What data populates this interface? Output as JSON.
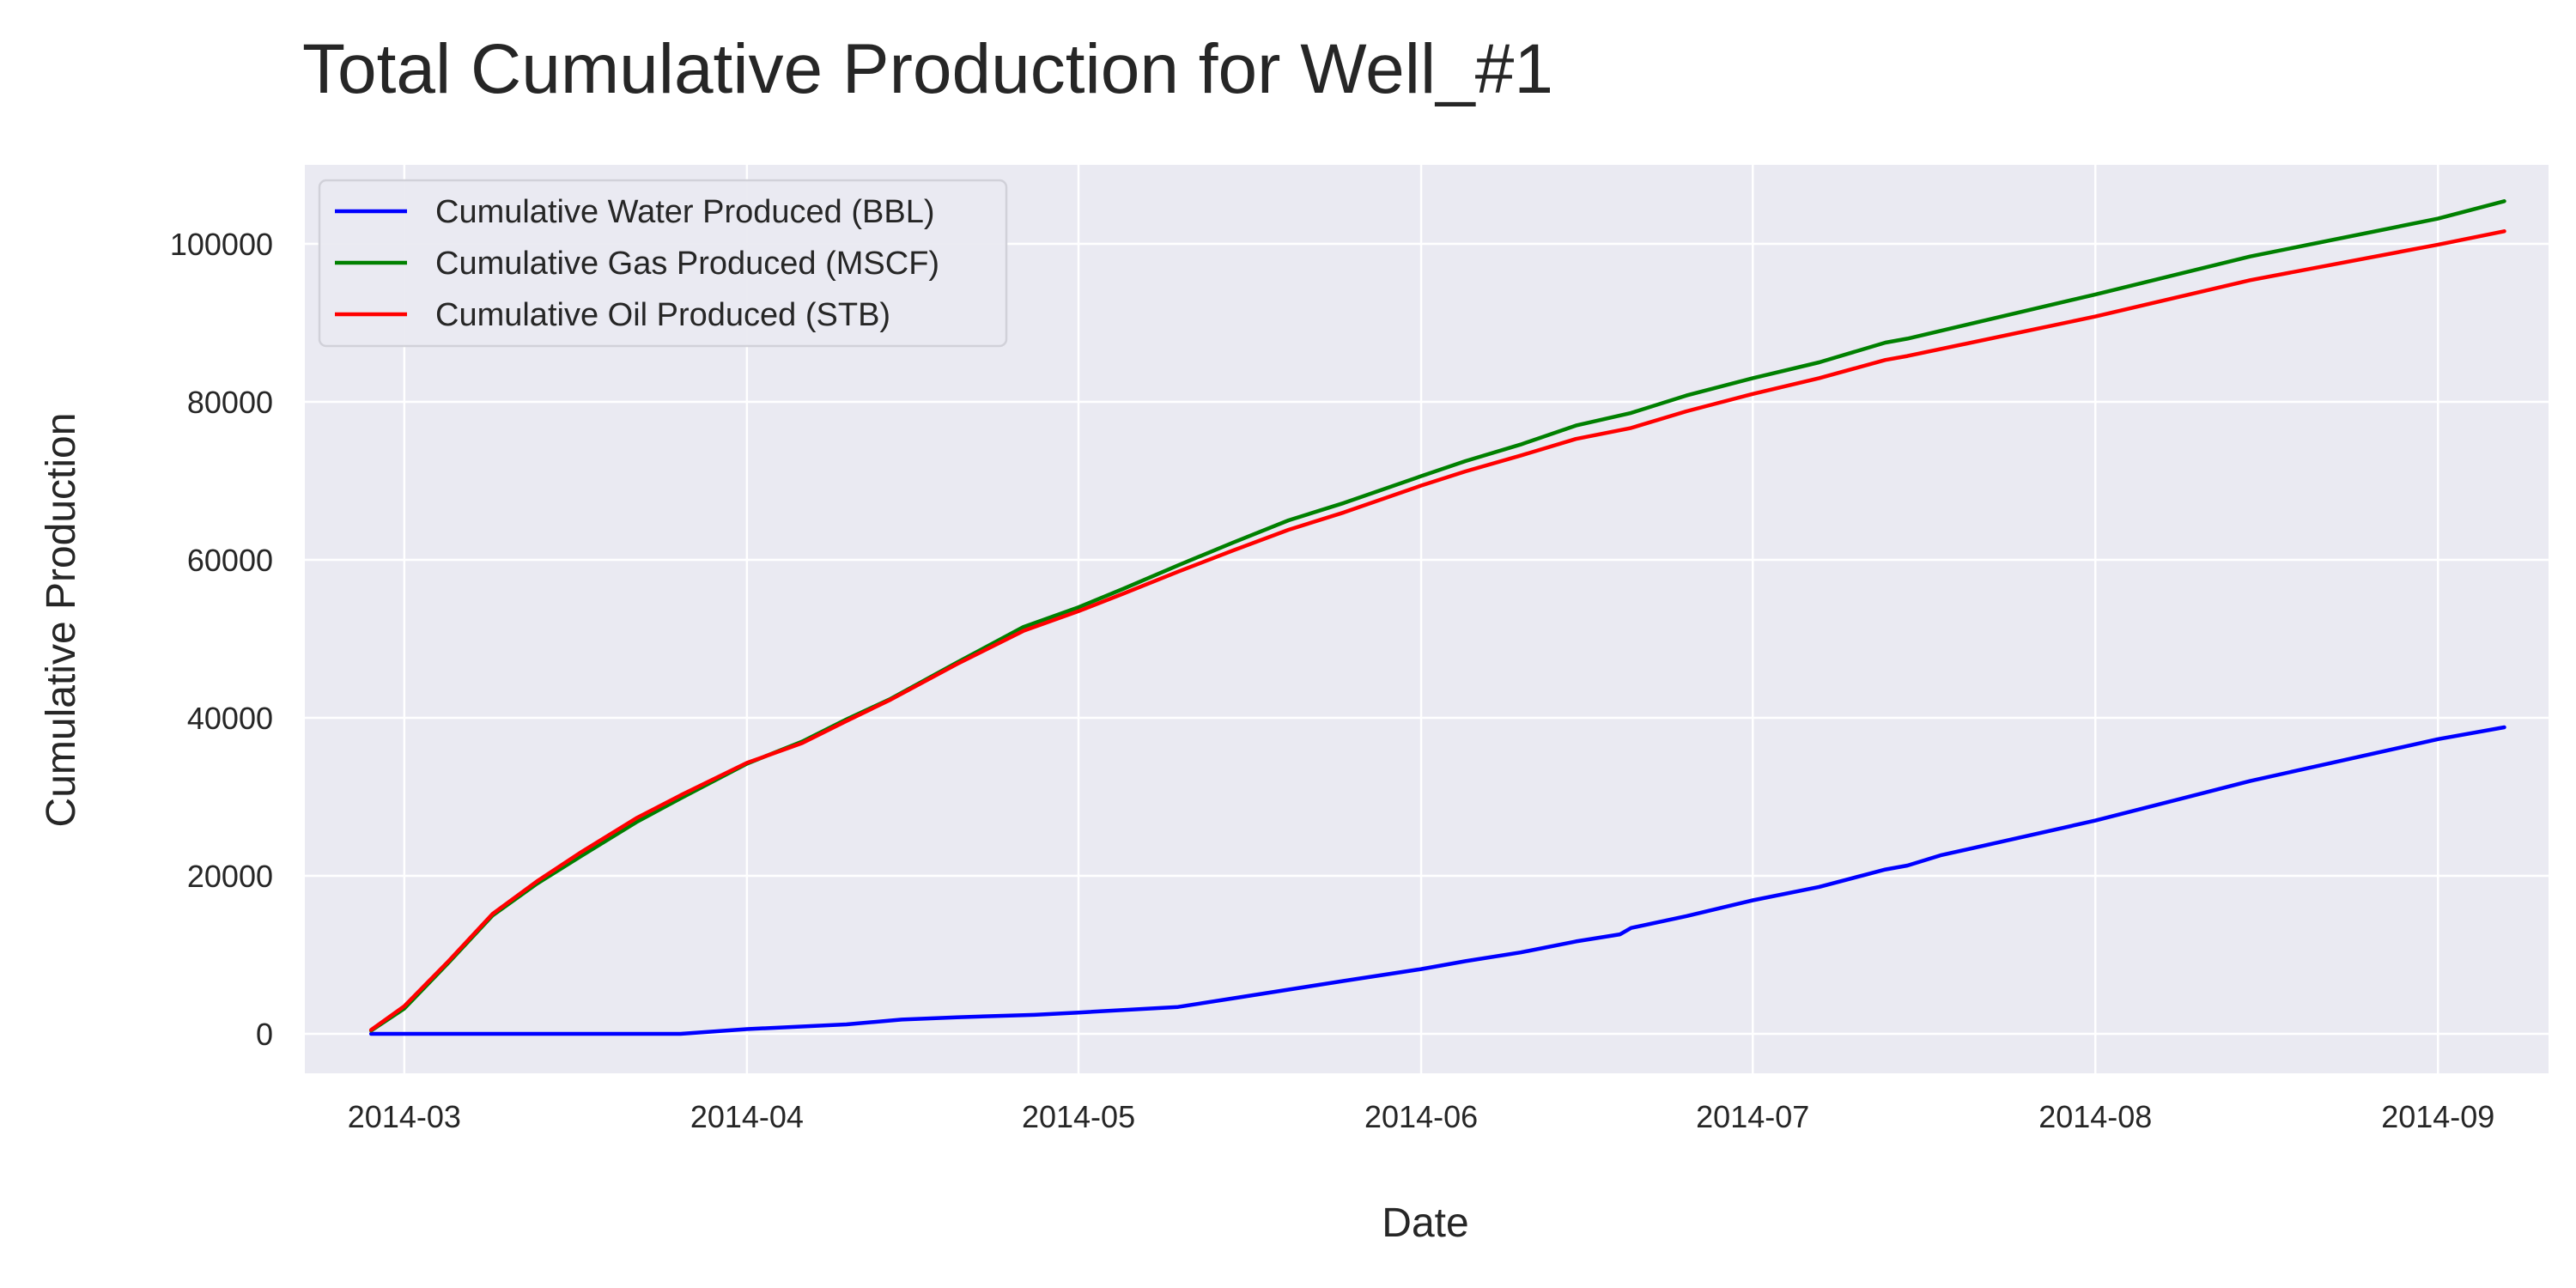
{
  "chart_data": {
    "type": "line",
    "title": "Total Cumulative Production for Well_#1",
    "xlabel": "Date",
    "ylabel": "Cumulative Production",
    "x_axis": {
      "kind": "date",
      "range": [
        "2014-02-20",
        "2014-09-11"
      ],
      "ticks": [
        "2014-03-01",
        "2014-04-01",
        "2014-05-01",
        "2014-06-01",
        "2014-07-01",
        "2014-08-01",
        "2014-09-01"
      ],
      "tick_labels": [
        "2014-03",
        "2014-04",
        "2014-05",
        "2014-06",
        "2014-07",
        "2014-08",
        "2014-09"
      ]
    },
    "y_axis": {
      "range": [
        -5000,
        110000
      ],
      "ticks": [
        0,
        20000,
        40000,
        60000,
        80000,
        100000
      ],
      "tick_labels": [
        "0",
        "20000",
        "40000",
        "60000",
        "80000",
        "100000"
      ]
    },
    "grid": true,
    "legend_position": "top-left",
    "background_color": "#eaeaf2",
    "grid_color": "#ffffff",
    "series": [
      {
        "name": "Cumulative Water Produced (BBL)",
        "color": "#0000ff",
        "points": [
          [
            "2014-02-26",
            0
          ],
          [
            "2014-03-10",
            0
          ],
          [
            "2014-03-26",
            0
          ],
          [
            "2014-04-01",
            600
          ],
          [
            "2014-04-10",
            1200
          ],
          [
            "2014-04-15",
            1800
          ],
          [
            "2014-04-20",
            2100
          ],
          [
            "2014-04-27",
            2400
          ],
          [
            "2014-05-01",
            2700
          ],
          [
            "2014-05-10",
            3400
          ],
          [
            "2014-05-15",
            4500
          ],
          [
            "2014-05-20",
            5600
          ],
          [
            "2014-05-25",
            6700
          ],
          [
            "2014-06-01",
            8200
          ],
          [
            "2014-06-05",
            9200
          ],
          [
            "2014-06-10",
            10300
          ],
          [
            "2014-06-15",
            11700
          ],
          [
            "2014-06-19",
            12600
          ],
          [
            "2014-06-20",
            13400
          ],
          [
            "2014-06-25",
            14900
          ],
          [
            "2014-07-01",
            16900
          ],
          [
            "2014-07-07",
            18600
          ],
          [
            "2014-07-13",
            20800
          ],
          [
            "2014-07-15",
            21300
          ],
          [
            "2014-07-18",
            22600
          ],
          [
            "2014-08-01",
            27000
          ],
          [
            "2014-08-15",
            32000
          ],
          [
            "2014-09-01",
            37300
          ],
          [
            "2014-09-07",
            38800
          ]
        ]
      },
      {
        "name": "Cumulative Gas Produced (MSCF)",
        "color": "#008000",
        "points": [
          [
            "2014-02-26",
            400
          ],
          [
            "2014-03-01",
            3200
          ],
          [
            "2014-03-05",
            9000
          ],
          [
            "2014-03-09",
            15000
          ],
          [
            "2014-03-13",
            19000
          ],
          [
            "2014-03-17",
            22500
          ],
          [
            "2014-03-22",
            26800
          ],
          [
            "2014-03-26",
            29800
          ],
          [
            "2014-04-01",
            34200
          ],
          [
            "2014-04-06",
            37000
          ],
          [
            "2014-04-10",
            39800
          ],
          [
            "2014-04-14",
            42400
          ],
          [
            "2014-04-20",
            47000
          ],
          [
            "2014-04-26",
            51500
          ],
          [
            "2014-05-01",
            54000
          ],
          [
            "2014-05-05",
            56300
          ],
          [
            "2014-05-10",
            59300
          ],
          [
            "2014-05-15",
            62200
          ],
          [
            "2014-05-20",
            65000
          ],
          [
            "2014-05-25",
            67200
          ],
          [
            "2014-06-01",
            70600
          ],
          [
            "2014-06-05",
            72500
          ],
          [
            "2014-06-10",
            74600
          ],
          [
            "2014-06-15",
            77000
          ],
          [
            "2014-06-20",
            78600
          ],
          [
            "2014-06-25",
            80800
          ],
          [
            "2014-07-01",
            83000
          ],
          [
            "2014-07-07",
            85000
          ],
          [
            "2014-07-13",
            87500
          ],
          [
            "2014-07-15",
            88000
          ],
          [
            "2014-08-01",
            93600
          ],
          [
            "2014-08-15",
            98400
          ],
          [
            "2014-09-01",
            103200
          ],
          [
            "2014-09-07",
            105400
          ]
        ]
      },
      {
        "name": "Cumulative Oil Produced (STB)",
        "color": "#ff0000",
        "points": [
          [
            "2014-02-26",
            500
          ],
          [
            "2014-03-01",
            3500
          ],
          [
            "2014-03-05",
            9200
          ],
          [
            "2014-03-09",
            15200
          ],
          [
            "2014-03-13",
            19300
          ],
          [
            "2014-03-17",
            23000
          ],
          [
            "2014-03-22",
            27300
          ],
          [
            "2014-03-26",
            30200
          ],
          [
            "2014-04-01",
            34300
          ],
          [
            "2014-04-06",
            36800
          ],
          [
            "2014-04-10",
            39600
          ],
          [
            "2014-04-14",
            42300
          ],
          [
            "2014-04-20",
            46800
          ],
          [
            "2014-04-26",
            51000
          ],
          [
            "2014-05-01",
            53500
          ],
          [
            "2014-05-05",
            55700
          ],
          [
            "2014-05-10",
            58500
          ],
          [
            "2014-05-15",
            61200
          ],
          [
            "2014-05-20",
            63800
          ],
          [
            "2014-05-25",
            66000
          ],
          [
            "2014-06-01",
            69400
          ],
          [
            "2014-06-05",
            71200
          ],
          [
            "2014-06-10",
            73200
          ],
          [
            "2014-06-15",
            75300
          ],
          [
            "2014-06-20",
            76700
          ],
          [
            "2014-06-25",
            78800
          ],
          [
            "2014-07-01",
            81000
          ],
          [
            "2014-07-07",
            83000
          ],
          [
            "2014-07-13",
            85300
          ],
          [
            "2014-07-15",
            85800
          ],
          [
            "2014-08-01",
            90800
          ],
          [
            "2014-08-15",
            95400
          ],
          [
            "2014-09-01",
            99900
          ],
          [
            "2014-09-07",
            101600
          ]
        ]
      }
    ]
  }
}
